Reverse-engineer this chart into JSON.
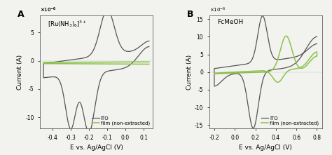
{
  "panel_A": {
    "label": "A",
    "title": "[Ru(NH3)6]3+",
    "xlabel": "E vs. Ag/AgCl (V)",
    "ylabel": "Current (A)",
    "xlim": [
      -0.47,
      0.15
    ],
    "ylim": [
      -12,
      8
    ],
    "yticks": [
      -10,
      -5,
      0,
      5
    ],
    "xticks": [
      -0.4,
      -0.3,
      -0.2,
      -0.1,
      0.0,
      0.1
    ],
    "legend_labels": [
      "ITO",
      "film (non-extracted)"
    ],
    "ito_color": "#555555",
    "film_color": "#8bc34a"
  },
  "panel_B": {
    "label": "B",
    "title": "FcMeOH",
    "xlabel": "E vs. Ag/AgCl (V)",
    "ylabel": "Current (A)",
    "xlim": [
      -0.25,
      0.85
    ],
    "ylim": [
      -16,
      16
    ],
    "yticks": [
      -15,
      -10,
      -5,
      0,
      5,
      10,
      15
    ],
    "xticks": [
      -0.2,
      0.0,
      0.2,
      0.4,
      0.6,
      0.8
    ],
    "legend_labels": [
      "ITO",
      "film (non-extracted)"
    ],
    "ito_color": "#555555",
    "film_color": "#8bc34a"
  },
  "background_color": "#f2f2ee",
  "fig_background": "#f2f2ee"
}
